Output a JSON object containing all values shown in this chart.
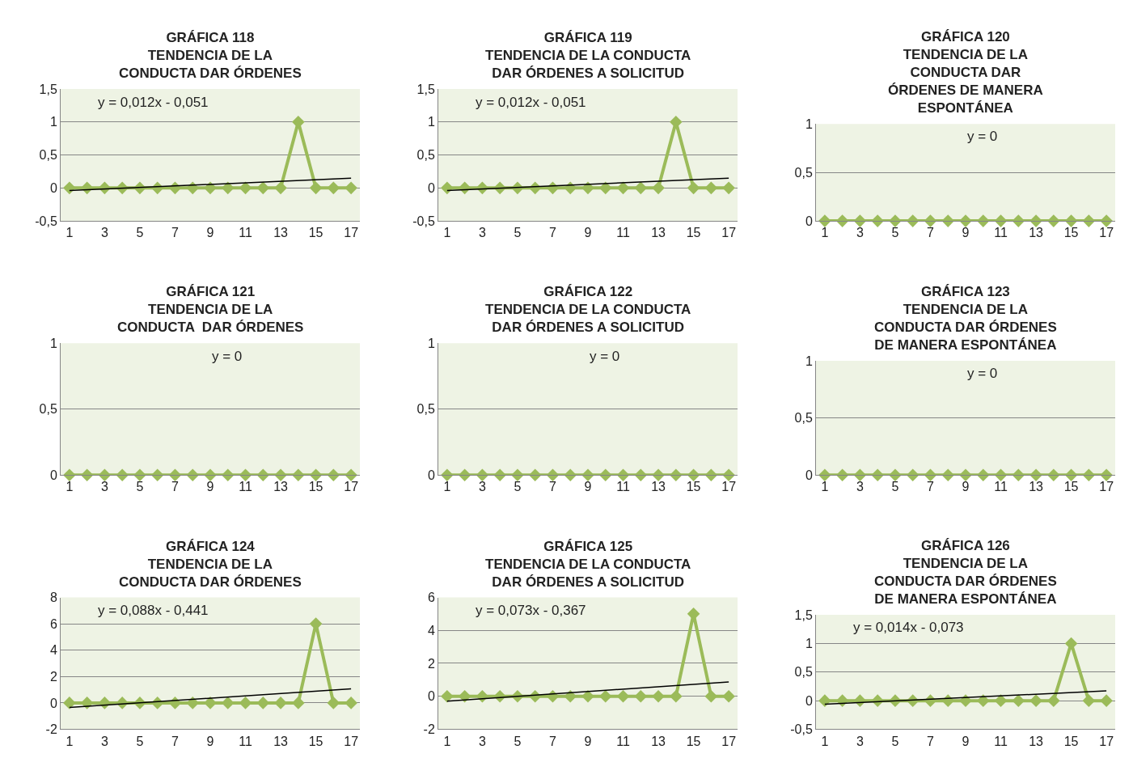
{
  "chart_data": [
    {
      "type": "line",
      "title": "GRÁFICA 118\nTENDENCIA DE LA\nCONDUCTA DAR ÓRDENES",
      "x": [
        1,
        2,
        3,
        4,
        5,
        6,
        7,
        8,
        9,
        10,
        11,
        12,
        13,
        14,
        15,
        16,
        17
      ],
      "series": [
        {
          "color": "#9bbb59",
          "values": [
            0,
            0,
            0,
            0,
            0,
            0,
            0,
            0,
            0,
            0,
            0,
            0,
            0,
            1,
            0,
            0,
            0
          ],
          "marker": "diamond"
        },
        {
          "color": "#000000",
          "values": [
            -0.04,
            null,
            null,
            null,
            null,
            null,
            null,
            null,
            null,
            null,
            null,
            null,
            null,
            null,
            null,
            null,
            0.15
          ],
          "marker": "none"
        }
      ],
      "annotations": [
        "y = 0,012x - 0,051"
      ],
      "xlim": [
        0.5,
        17.5
      ],
      "xticks": [
        1,
        3,
        5,
        7,
        9,
        11,
        13,
        15,
        17
      ],
      "ylim": [
        -0.5,
        1.5
      ],
      "yticks": [
        {
          "value": -0.5,
          "label": "-0,5"
        },
        0,
        {
          "value": 0.5,
          "label": "0,5"
        },
        1,
        {
          "value": 1.5,
          "label": "1,5"
        }
      ],
      "grid": "y"
    },
    {
      "type": "line",
      "title": "GRÁFICA 119\nTENDENCIA DE LA CONDUCTA\nDAR ÓRDENES A SOLICITUD",
      "x": [
        1,
        2,
        3,
        4,
        5,
        6,
        7,
        8,
        9,
        10,
        11,
        12,
        13,
        14,
        15,
        16,
        17
      ],
      "series": [
        {
          "color": "#9bbb59",
          "values": [
            0,
            0,
            0,
            0,
            0,
            0,
            0,
            0,
            0,
            0,
            0,
            0,
            0,
            1,
            0,
            0,
            0
          ],
          "marker": "diamond"
        },
        {
          "color": "#000000",
          "values": [
            -0.04,
            null,
            null,
            null,
            null,
            null,
            null,
            null,
            null,
            null,
            null,
            null,
            null,
            null,
            null,
            null,
            0.15
          ],
          "marker": "none"
        }
      ],
      "annotations": [
        "y = 0,012x - 0,051"
      ],
      "xlim": [
        0.5,
        17.5
      ],
      "xticks": [
        1,
        3,
        5,
        7,
        9,
        11,
        13,
        15,
        17
      ],
      "ylim": [
        -0.5,
        1.5
      ],
      "yticks": [
        {
          "value": -0.5,
          "label": "-0,5"
        },
        0,
        {
          "value": 0.5,
          "label": "0,5"
        },
        1,
        {
          "value": 1.5,
          "label": "1,5"
        }
      ],
      "grid": "y"
    },
    {
      "type": "line",
      "title": "GRÁFICA 120\nTENDENCIA DE LA\nCONDUCTA DAR\nÓRDENES DE MANERA\nESPONTÁNEA",
      "x": [
        1,
        2,
        3,
        4,
        5,
        6,
        7,
        8,
        9,
        10,
        11,
        12,
        13,
        14,
        15,
        16,
        17
      ],
      "series": [
        {
          "color": "#9bbb59",
          "values": [
            0,
            0,
            0,
            0,
            0,
            0,
            0,
            0,
            0,
            0,
            0,
            0,
            0,
            0,
            0,
            0,
            0
          ],
          "marker": "diamond"
        }
      ],
      "annotations": [
        "y = 0"
      ],
      "xlim": [
        0.5,
        17.5
      ],
      "xticks": [
        1,
        3,
        5,
        7,
        9,
        11,
        13,
        15,
        17
      ],
      "ylim": [
        0,
        1
      ],
      "yticks": [
        0,
        {
          "value": 0.5,
          "label": "0,5"
        },
        1
      ],
      "grid": "y"
    },
    {
      "type": "line",
      "title": "GRÁFICA 121\nTENDENCIA DE LA\nCONDUCTA  DAR ÓRDENES",
      "x": [
        1,
        2,
        3,
        4,
        5,
        6,
        7,
        8,
        9,
        10,
        11,
        12,
        13,
        14,
        15,
        16,
        17
      ],
      "series": [
        {
          "color": "#9bbb59",
          "values": [
            0,
            0,
            0,
            0,
            0,
            0,
            0,
            0,
            0,
            0,
            0,
            0,
            0,
            0,
            0,
            0,
            0
          ],
          "marker": "diamond"
        }
      ],
      "annotations": [
        "y = 0"
      ],
      "xlim": [
        0.5,
        17.5
      ],
      "xticks": [
        1,
        3,
        5,
        7,
        9,
        11,
        13,
        15,
        17
      ],
      "ylim": [
        0,
        1
      ],
      "yticks": [
        0,
        {
          "value": 0.5,
          "label": "0,5"
        },
        1
      ],
      "grid": "y"
    },
    {
      "type": "line",
      "title": "GRÁFICA 122\nTENDENCIA DE LA CONDUCTA\nDAR ÓRDENES A SOLICITUD",
      "x": [
        1,
        2,
        3,
        4,
        5,
        6,
        7,
        8,
        9,
        10,
        11,
        12,
        13,
        14,
        15,
        16,
        17
      ],
      "series": [
        {
          "color": "#9bbb59",
          "values": [
            0,
            0,
            0,
            0,
            0,
            0,
            0,
            0,
            0,
            0,
            0,
            0,
            0,
            0,
            0,
            0,
            0
          ],
          "marker": "diamond"
        }
      ],
      "annotations": [
        "y = 0"
      ],
      "xlim": [
        0.5,
        17.5
      ],
      "xticks": [
        1,
        3,
        5,
        7,
        9,
        11,
        13,
        15,
        17
      ],
      "ylim": [
        0,
        1
      ],
      "yticks": [
        0,
        {
          "value": 0.5,
          "label": "0,5"
        },
        1
      ],
      "grid": "y"
    },
    {
      "type": "line",
      "title": "GRÁFICA 123\nTENDENCIA DE LA\nCONDUCTA DAR ÓRDENES\nDE MANERA ESPONTÁNEA",
      "x": [
        1,
        2,
        3,
        4,
        5,
        6,
        7,
        8,
        9,
        10,
        11,
        12,
        13,
        14,
        15,
        16,
        17
      ],
      "series": [
        {
          "color": "#9bbb59",
          "values": [
            0,
            0,
            0,
            0,
            0,
            0,
            0,
            0,
            0,
            0,
            0,
            0,
            0,
            0,
            0,
            0,
            0
          ],
          "marker": "diamond"
        }
      ],
      "annotations": [
        "y = 0"
      ],
      "xlim": [
        0.5,
        17.5
      ],
      "xticks": [
        1,
        3,
        5,
        7,
        9,
        11,
        13,
        15,
        17
      ],
      "ylim": [
        0,
        1
      ],
      "yticks": [
        0,
        {
          "value": 0.5,
          "label": "0,5"
        },
        1
      ],
      "grid": "y"
    },
    {
      "type": "line",
      "title": "GRÁFICA 124\nTENDENCIA DE LA\nCONDUCTA DAR ÓRDENES",
      "x": [
        1,
        2,
        3,
        4,
        5,
        6,
        7,
        8,
        9,
        10,
        11,
        12,
        13,
        14,
        15,
        16,
        17
      ],
      "series": [
        {
          "color": "#9bbb59",
          "values": [
            0,
            0,
            0,
            0,
            0,
            0,
            0,
            0,
            0,
            0,
            0,
            0,
            0,
            0,
            6,
            0,
            0
          ],
          "marker": "diamond"
        },
        {
          "color": "#000000",
          "values": [
            -0.35,
            null,
            null,
            null,
            null,
            null,
            null,
            null,
            null,
            null,
            null,
            null,
            null,
            null,
            null,
            null,
            1.06
          ],
          "marker": "none"
        }
      ],
      "annotations": [
        "y = 0,088x - 0,441"
      ],
      "xlim": [
        0.5,
        17.5
      ],
      "xticks": [
        1,
        3,
        5,
        7,
        9,
        11,
        13,
        15,
        17
      ],
      "ylim": [
        -2,
        8
      ],
      "yticks": [
        -2,
        0,
        2,
        4,
        6,
        8
      ],
      "grid": "y"
    },
    {
      "type": "line",
      "title": "GRÁFICA 125\nTENDENCIA DE LA CONDUCTA\nDAR ÓRDENES A SOLICITUD",
      "x": [
        1,
        2,
        3,
        4,
        5,
        6,
        7,
        8,
        9,
        10,
        11,
        12,
        13,
        14,
        15,
        16,
        17
      ],
      "series": [
        {
          "color": "#9bbb59",
          "values": [
            0,
            0,
            0,
            0,
            0,
            0,
            0,
            0,
            0,
            0,
            0,
            0,
            0,
            0,
            5,
            0,
            0
          ],
          "marker": "diamond"
        },
        {
          "color": "#000000",
          "values": [
            -0.29,
            null,
            null,
            null,
            null,
            null,
            null,
            null,
            null,
            null,
            null,
            null,
            null,
            null,
            null,
            null,
            0.87
          ],
          "marker": "none"
        }
      ],
      "annotations": [
        "y = 0,073x - 0,367"
      ],
      "xlim": [
        0.5,
        17.5
      ],
      "xticks": [
        1,
        3,
        5,
        7,
        9,
        11,
        13,
        15,
        17
      ],
      "ylim": [
        -2,
        6
      ],
      "yticks": [
        -2,
        0,
        2,
        4,
        6
      ],
      "grid": "y"
    },
    {
      "type": "line",
      "title": "GRÁFICA 126\nTENDENCIA DE LA\nCONDUCTA DAR ÓRDENES\nDE MANERA ESPONTÁNEA",
      "x": [
        1,
        2,
        3,
        4,
        5,
        6,
        7,
        8,
        9,
        10,
        11,
        12,
        13,
        14,
        15,
        16,
        17
      ],
      "series": [
        {
          "color": "#9bbb59",
          "values": [
            0,
            0,
            0,
            0,
            0,
            0,
            0,
            0,
            0,
            0,
            0,
            0,
            0,
            0,
            1,
            0,
            0
          ],
          "marker": "diamond"
        },
        {
          "color": "#000000",
          "values": [
            -0.06,
            null,
            null,
            null,
            null,
            null,
            null,
            null,
            null,
            null,
            null,
            null,
            null,
            null,
            null,
            null,
            0.17
          ],
          "marker": "none"
        }
      ],
      "annotations": [
        "y = 0,014x - 0,073"
      ],
      "xlim": [
        0.5,
        17.5
      ],
      "xticks": [
        1,
        3,
        5,
        7,
        9,
        11,
        13,
        15,
        17
      ],
      "ylim": [
        -0.5,
        1.5
      ],
      "yticks": [
        {
          "value": -0.5,
          "label": "-0,5"
        },
        0,
        {
          "value": 0.5,
          "label": "0,5"
        },
        1,
        {
          "value": 1.5,
          "label": "1,5"
        }
      ],
      "grid": "y"
    }
  ]
}
